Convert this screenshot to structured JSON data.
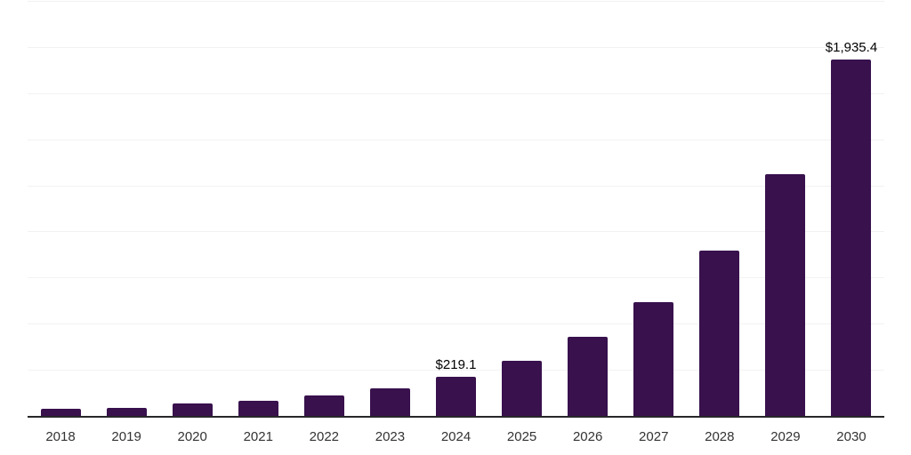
{
  "chart_data": {
    "type": "bar",
    "title": "",
    "xlabel": "",
    "ylabel": "",
    "categories": [
      "2018",
      "2019",
      "2020",
      "2021",
      "2022",
      "2023",
      "2024",
      "2025",
      "2026",
      "2027",
      "2028",
      "2029",
      "2030"
    ],
    "values": [
      42,
      50,
      70,
      85,
      116,
      154,
      219.1,
      305,
      432,
      620,
      900,
      1315,
      1935.4
    ],
    "data_labels": {
      "2024": "$219.1",
      "2030": "$1,935.4"
    },
    "ylim": [
      0,
      2250
    ],
    "gridline_step": 250,
    "grid": true,
    "legend_position": "none",
    "colors": {
      "bar": "#38114d",
      "axis_line": "#27272a",
      "gridline": "#f2f2f2",
      "value_label": "#000000",
      "tick_label": "#333333",
      "background": "#ffffff"
    }
  }
}
